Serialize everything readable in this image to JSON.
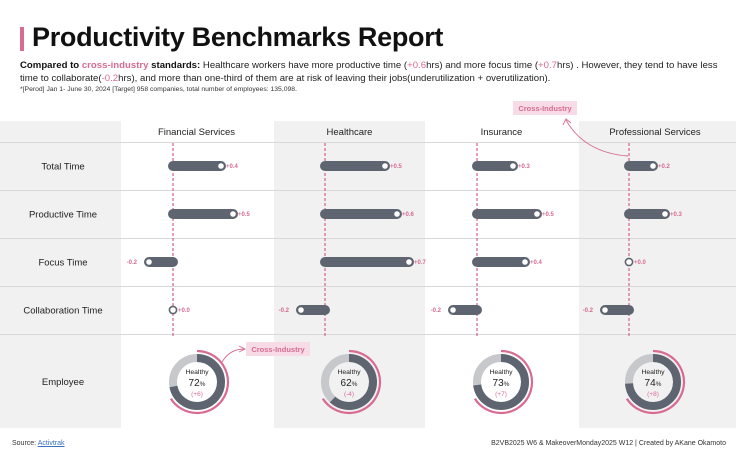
{
  "header": {
    "title": "Productivity Benchmarks Report",
    "subtitle": {
      "lead": "Compared to ",
      "highlight": "cross-industry",
      "lead_end": " standards:",
      "s1": " Healthcare workers have more productive time (",
      "v1": "+0.6",
      "s2": "hrs) and more focus time (",
      "v2": "+0.7",
      "s3": "hrs) . However, they tend to have less time to collaborate(",
      "v3": "-0.2",
      "s4": "hrs), and more than one-third of them are at risk of leaving their jobs(underutilization + overutilization)."
    },
    "note": "*[Perod] Jan 1- June 30, 2024    [Target] 958 companies, total number of employees: 135,098."
  },
  "footer": {
    "source_label": "Source: ",
    "source_link": "Activtrak",
    "credit": "B2VB2025 W6 & MakeoverMonday2025 W12 | Created by AKane Okamoto"
  },
  "colors": {
    "bar": "#5f6570",
    "accent": "#d96b93",
    "band": "#f1f1f1",
    "ring_light": "#c6c8cc",
    "tag_bg": "#f7dbe6"
  },
  "chart_data": {
    "type": "bar",
    "categories": [
      "Financial Services",
      "Healthcare",
      "Insurance",
      "Professional Services"
    ],
    "metrics": [
      "Total Time",
      "Productive Time",
      "Focus Time",
      "Collaboration Time"
    ],
    "reference_label": "Cross-Industry",
    "series": [
      {
        "name": "Total Time",
        "values": [
          0.4,
          0.5,
          0.3,
          0.2
        ],
        "labels": [
          "+0.4",
          "+0.5",
          "+0.3",
          "+0.2"
        ]
      },
      {
        "name": "Productive Time",
        "values": [
          0.5,
          0.6,
          0.5,
          0.3
        ],
        "labels": [
          "+0.5",
          "+0.6",
          "+0.5",
          "+0.3"
        ]
      },
      {
        "name": "Focus Time",
        "values": [
          -0.2,
          0.7,
          0.4,
          0.0
        ],
        "labels": [
          "-0.2",
          "+0.7",
          "+0.4",
          "+0.0"
        ]
      },
      {
        "name": "Collaboration Time",
        "values": [
          0.0,
          -0.2,
          -0.2,
          -0.2
        ],
        "labels": [
          "+0.0",
          "-0.2",
          "-0.2",
          "-0.2"
        ]
      }
    ],
    "employee": {
      "row_label": "Employee",
      "center_label": "Healthy",
      "unit": "%",
      "healthy_pct": [
        72,
        62,
        73,
        74
      ],
      "diff_labels": [
        "(+6)",
        "(-4)",
        "(+7)",
        "(+8)"
      ],
      "cross_industry_pct": 66
    }
  }
}
